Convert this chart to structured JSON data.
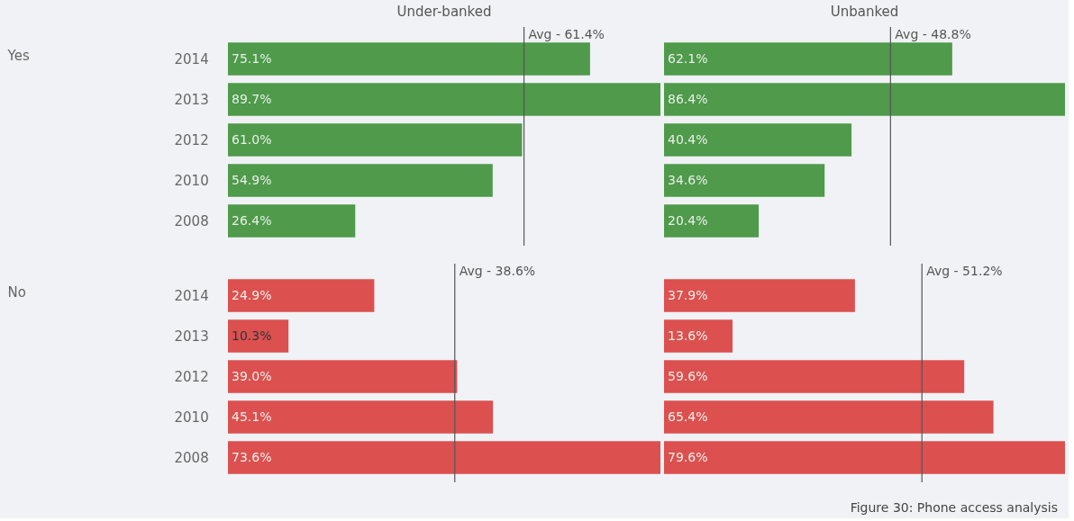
{
  "chart_data": [
    {
      "type": "bar",
      "orientation": "horizontal",
      "title": "Under-banked",
      "ylabel": "Yes",
      "categories": [
        "2014",
        "2013",
        "2012",
        "2010",
        "2008"
      ],
      "values": [
        75.1,
        89.7,
        61.0,
        54.9,
        26.4
      ],
      "value_labels": [
        "75.1%",
        "89.7%",
        "61.0%",
        "54.9%",
        "26.4%"
      ],
      "color": "#4f9a4b",
      "tick_labels": "y",
      "ref_lines": [
        {
          "axis": "x",
          "value": 61.4,
          "label": "Avg - 61.4%"
        }
      ]
    },
    {
      "type": "bar",
      "orientation": "horizontal",
      "title": "Unbanked",
      "categories": [
        "2014",
        "2013",
        "2012",
        "2010",
        "2008"
      ],
      "values": [
        62.1,
        86.4,
        40.4,
        34.6,
        20.4
      ],
      "value_labels": [
        "62.1%",
        "86.4%",
        "40.4%",
        "34.6%",
        "20.4%"
      ],
      "color": "#4f9a4b",
      "tick_labels": false,
      "ref_lines": [
        {
          "axis": "x",
          "value": 48.8,
          "label": "Avg - 48.8%"
        }
      ]
    },
    {
      "type": "bar",
      "orientation": "horizontal",
      "ylabel": "No",
      "categories": [
        "2014",
        "2013",
        "2012",
        "2010",
        "2008"
      ],
      "values": [
        24.9,
        10.3,
        39.0,
        45.1,
        73.6
      ],
      "value_labels": [
        "24.9%",
        "10.3%",
        "39.0%",
        "45.1%",
        "73.6%"
      ],
      "color": "#dc5050",
      "tick_labels": "y",
      "ref_lines": [
        {
          "axis": "x",
          "value": 38.6,
          "label": "Avg - 38.6%"
        }
      ]
    },
    {
      "type": "bar",
      "orientation": "horizontal",
      "categories": [
        "2014",
        "2013",
        "2012",
        "2010",
        "2008"
      ],
      "values": [
        37.9,
        13.6,
        59.6,
        65.4,
        79.6
      ],
      "value_labels": [
        "37.9%",
        "13.6%",
        "59.6%",
        "65.4%",
        "79.6%"
      ],
      "color": "#dc5050",
      "tick_labels": false,
      "ref_lines": [
        {
          "axis": "x",
          "value": 51.2,
          "label": "Avg - 51.2%"
        }
      ],
      "annotations": [
        "Figure 30: Phone access analysis"
      ]
    }
  ]
}
